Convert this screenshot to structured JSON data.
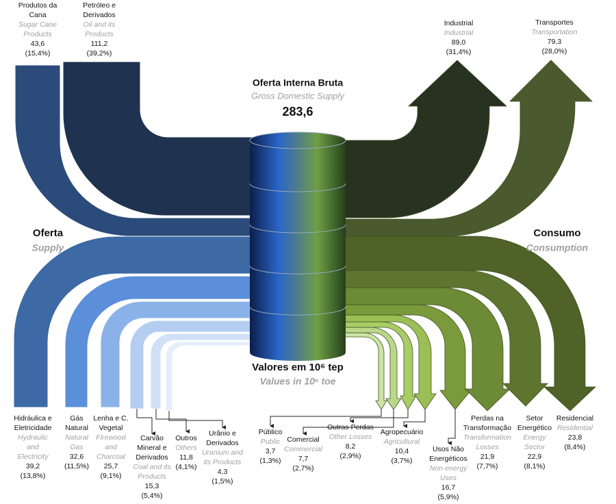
{
  "center": {
    "title": "Oferta Interna Bruta",
    "title_en": "Gross Domestic Supply",
    "value": "283,6",
    "units": "Valores em 10⁶ tep",
    "units_en": "Values in 10⁶ toe"
  },
  "supply": {
    "heading": "Oferta",
    "heading_en": "Supply",
    "items": [
      {
        "name": [
          "Produtos da",
          "Cana"
        ],
        "name_en": [
          "Sugar Cane",
          "Products"
        ],
        "value": "43,6",
        "share": "(15,4%)"
      },
      {
        "name": [
          "Petróleo e",
          "Derivados"
        ],
        "name_en": [
          "Oil and its",
          "Products"
        ],
        "value": "111,2",
        "share": "(39,2%)"
      },
      {
        "name": [
          "Hidráulica e",
          "Eletricidade"
        ],
        "name_en": [
          "Hydraulic",
          "and",
          "Electricity"
        ],
        "value": "39,2",
        "share": "(13,8%)"
      },
      {
        "name": [
          "Gás",
          "Natural"
        ],
        "name_en": [
          "Natural",
          "Gas"
        ],
        "value": "32,6",
        "share": "(11,5%)"
      },
      {
        "name": [
          "Lenha e C.",
          "Vegetal"
        ],
        "name_en": [
          "Firewood",
          "and",
          "Charcoal"
        ],
        "value": "25,7",
        "share": "(9,1%)"
      },
      {
        "name": [
          "Carvão",
          "Mineral e",
          "Derivados"
        ],
        "name_en": [
          "Coal and its",
          "Products"
        ],
        "value": "15,3",
        "share": "(5,4%)"
      },
      {
        "name": [
          "Outros"
        ],
        "name_en": [
          "Others"
        ],
        "value": "11,8",
        "share": "(4,1%)"
      },
      {
        "name": [
          "Urânio e",
          "Derivados"
        ],
        "name_en": [
          "Uranium and",
          "its Products"
        ],
        "value": "4,3",
        "share": "(1,5%)"
      }
    ]
  },
  "consumption": {
    "heading": "Consumo",
    "heading_en": "Consumption",
    "items": [
      {
        "name": [
          "Industrial"
        ],
        "name_en": [
          "Industrial"
        ],
        "value": "89,0",
        "share": "(31,4%)"
      },
      {
        "name": [
          "Transportes"
        ],
        "name_en": [
          "Transportation"
        ],
        "value": "79,3",
        "share": "(28,0%)"
      },
      {
        "name": [
          "Público"
        ],
        "name_en": [
          "Public"
        ],
        "value": "3,7",
        "share": "(1,3%)"
      },
      {
        "name": [
          "Comercial"
        ],
        "name_en": [
          "Commercial"
        ],
        "value": "7,7",
        "share": "(2,7%)"
      },
      {
        "name": [
          "Outras Perdas"
        ],
        "name_en": [
          "Other Losses"
        ],
        "value": "8,2",
        "share": "(2,9%)"
      },
      {
        "name": [
          "Agropecuário"
        ],
        "name_en": [
          "Agricultural"
        ],
        "value": "10,4",
        "share": "(3,7%)"
      },
      {
        "name": [
          "Usos Não",
          "Energéticos"
        ],
        "name_en": [
          "Non-energy",
          "Uses"
        ],
        "value": "16,7",
        "share": "(5,9%)"
      },
      {
        "name": [
          "Perdas na",
          "Transformação"
        ],
        "name_en": [
          "Transformation",
          "Losses"
        ],
        "value": "21,9",
        "share": "(7,7%)"
      },
      {
        "name": [
          "Setor",
          "Energético"
        ],
        "name_en": [
          "Energy",
          "Sector"
        ],
        "value": "22,9",
        "share": "(8,1%)"
      },
      {
        "name": [
          "Residencial"
        ],
        "name_en": [
          "Residential"
        ],
        "value": "23,8",
        "share": "(8,4%)"
      }
    ]
  }
}
